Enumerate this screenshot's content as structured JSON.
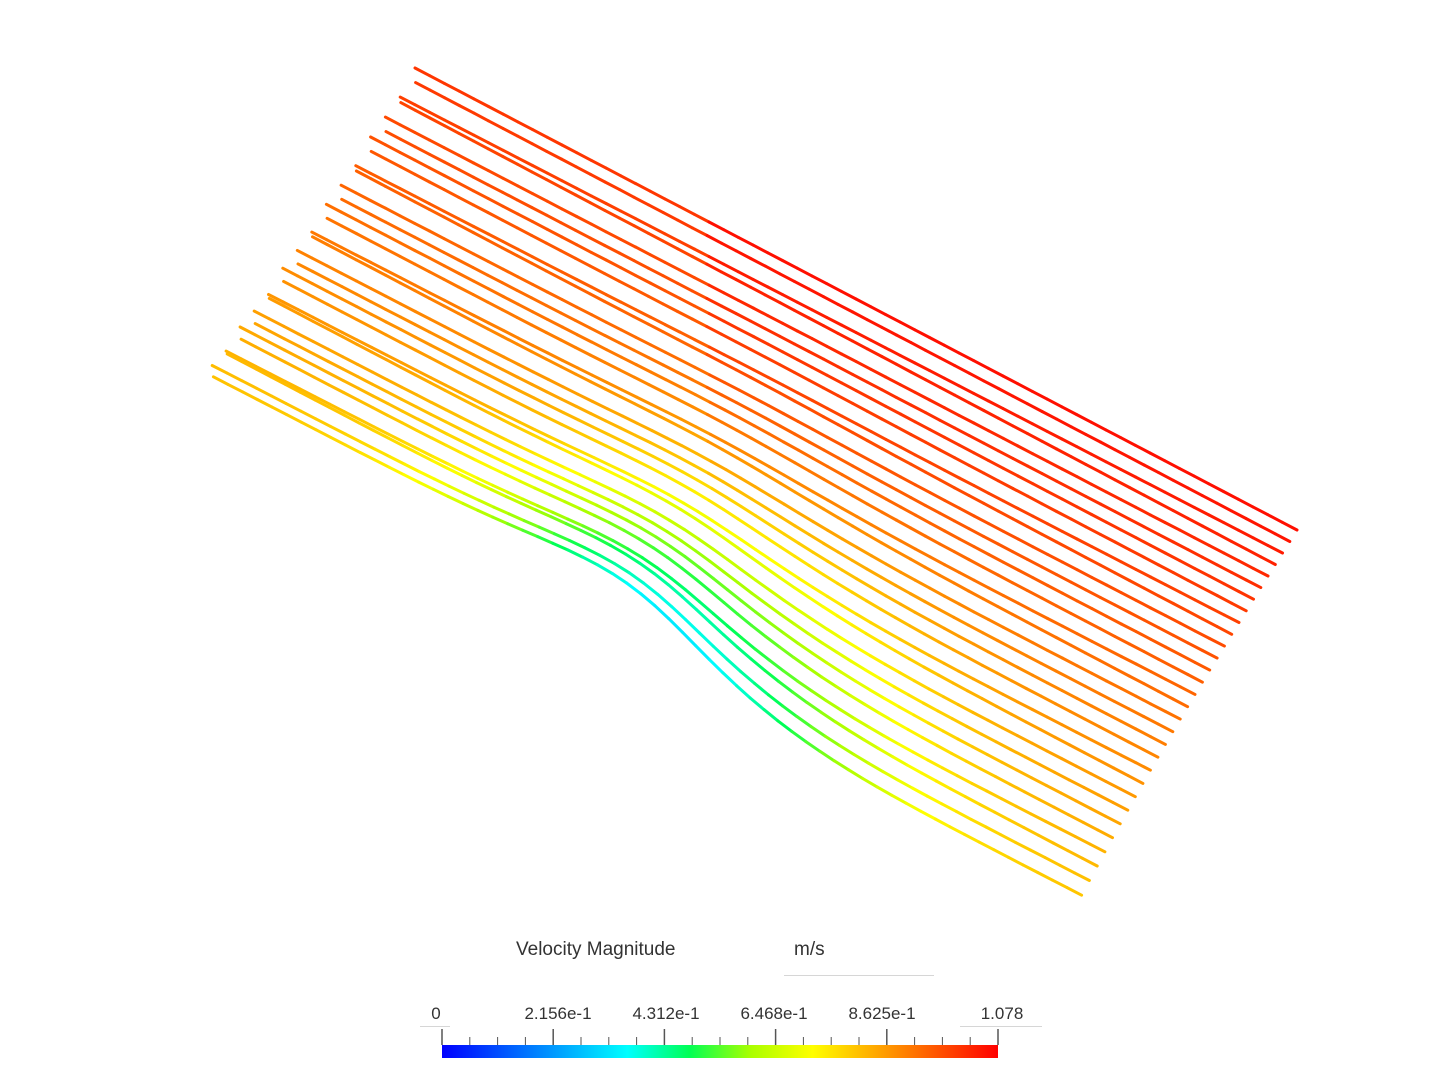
{
  "legend": {
    "title": "Velocity Magnitude",
    "unit": "m/s",
    "ticks": [
      "0",
      "2.156e-1",
      "4.312e-1",
      "6.468e-1",
      "8.625e-1",
      "1.078"
    ]
  },
  "colormap": [
    "#0000ff",
    "#0055ff",
    "#00aaff",
    "#00ffff",
    "#00ff55",
    "#aaff00",
    "#ffff00",
    "#ffaa00",
    "#ff5500",
    "#ff0000"
  ],
  "chart_data": {
    "type": "streamlines",
    "scalar": "Velocity Magnitude",
    "unit": "m/s",
    "range": [
      0,
      1.078
    ],
    "colorbar_ticks": [
      0,
      0.2156,
      0.4312,
      0.6468,
      0.8625,
      1.078
    ]
  }
}
